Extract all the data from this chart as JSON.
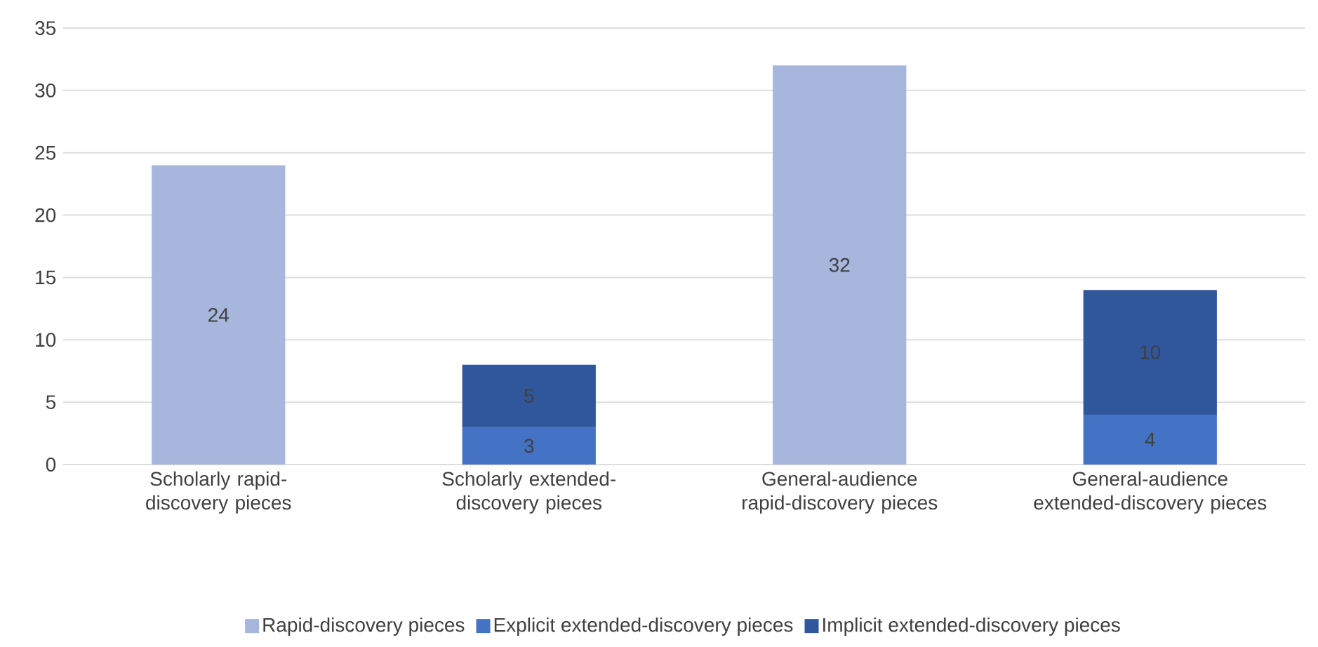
{
  "chart_data": {
    "type": "bar",
    "stacked": true,
    "categories": [
      "Scholarly rapid-discovery pieces",
      "Scholarly extended-discovery pieces",
      "General-audience rapid-discovery pieces",
      "General-audience extended-discovery pieces"
    ],
    "series": [
      {
        "name": "Rapid-discovery pieces",
        "color": "#a7b6dd",
        "values": [
          24,
          null,
          32,
          null
        ]
      },
      {
        "name": "Explicit extended-discovery pieces",
        "color": "#4472c4",
        "values": [
          null,
          3,
          null,
          4
        ]
      },
      {
        "name": "Implicit extended-discovery pieces",
        "color": "#30579c",
        "values": [
          null,
          5,
          null,
          10
        ]
      }
    ],
    "ylim": [
      0,
      35
    ],
    "yticks": [
      0,
      5,
      10,
      15,
      20,
      25,
      30,
      35
    ],
    "grid": "y",
    "legend": "bottom",
    "data_labels": true
  }
}
